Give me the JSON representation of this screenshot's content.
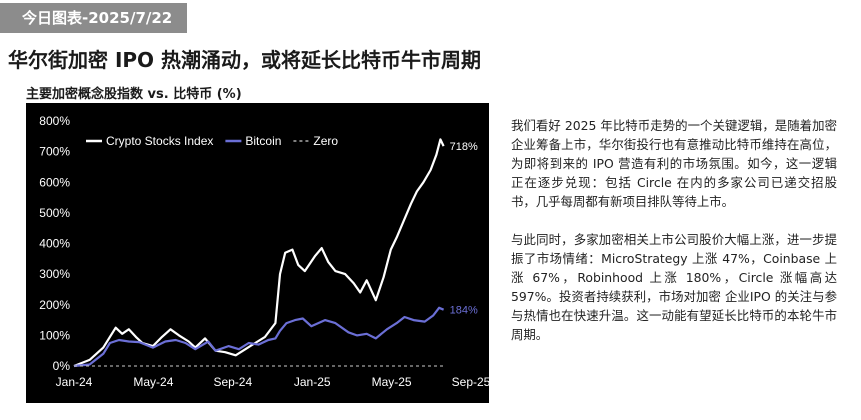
{
  "tag": "今日图表-2025/7/22",
  "headline": "华尔街加密 IPO 热潮涌动，或将延长比特币牛市周期",
  "chart_title": "主要加密概念股指数 vs. 比特币 (%)",
  "paragraphs": [
    "我们看好 2025 年比特币走势的一个关键逻辑，是随着加密企业筹备上市，华尔街投行也有意推动比特币维持在高位，为即将到来的 IPO 营造有利的市场氛围。如今，这一逻辑正在逐步兑现：包括 Circle 在内的多家公司已递交招股书，几乎每周都有新项目排队等待上市。",
    "与此同时，多家加密相关上市公司股价大幅上涨，进一步提振了市场情绪：MicroStrategy 上涨 47%，Coinbase 上涨 67%，Robinhood 上涨 180%，Circle 涨幅高达 597%。投资者持续获利，市场对加密 企业IPO 的关注与参与热情也在快速升温。这一动能有望延长比特币的本轮牛市周期。"
  ],
  "chart_data": {
    "type": "line",
    "title": "主要加密概念股指数 vs. 比特币 (%)",
    "x_ticks": [
      "Jan-24",
      "May-24",
      "Sep-24",
      "Jan-25",
      "May-25",
      "Sep-25"
    ],
    "x_range": [
      "2024-01-01",
      "2025-09-01"
    ],
    "y_ticks": [
      "0%",
      "100%",
      "200%",
      "300%",
      "400%",
      "500%",
      "600%",
      "700%",
      "800%"
    ],
    "ylim": [
      0,
      800
    ],
    "legend_position": "top-left",
    "series": [
      {
        "name": "Crypto Stocks Index",
        "color": "#ffffff",
        "end_label": "718%",
        "points": [
          [
            "2024-01-01",
            0
          ],
          [
            "2024-01-25",
            20
          ],
          [
            "2024-02-15",
            60
          ],
          [
            "2024-02-25",
            95
          ],
          [
            "2024-03-05",
            125
          ],
          [
            "2024-03-15",
            105
          ],
          [
            "2024-03-25",
            120
          ],
          [
            "2024-04-05",
            95
          ],
          [
            "2024-04-15",
            75
          ],
          [
            "2024-05-01",
            65
          ],
          [
            "2024-05-15",
            95
          ],
          [
            "2024-05-28",
            120
          ],
          [
            "2024-06-10",
            100
          ],
          [
            "2024-06-25",
            80
          ],
          [
            "2024-07-05",
            60
          ],
          [
            "2024-07-20",
            90
          ],
          [
            "2024-08-05",
            50
          ],
          [
            "2024-08-20",
            45
          ],
          [
            "2024-09-05",
            35
          ],
          [
            "2024-09-20",
            55
          ],
          [
            "2024-10-05",
            75
          ],
          [
            "2024-10-20",
            95
          ],
          [
            "2024-11-05",
            140
          ],
          [
            "2024-11-12",
            300
          ],
          [
            "2024-11-20",
            370
          ],
          [
            "2024-12-01",
            380
          ],
          [
            "2024-12-10",
            330
          ],
          [
            "2024-12-20",
            310
          ],
          [
            "2025-01-05",
            360
          ],
          [
            "2025-01-15",
            385
          ],
          [
            "2025-01-25",
            340
          ],
          [
            "2025-02-05",
            310
          ],
          [
            "2025-02-20",
            300
          ],
          [
            "2025-03-05",
            270
          ],
          [
            "2025-03-15",
            240
          ],
          [
            "2025-03-25",
            280
          ],
          [
            "2025-04-08",
            215
          ],
          [
            "2025-04-20",
            290
          ],
          [
            "2025-05-01",
            380
          ],
          [
            "2025-05-10",
            420
          ],
          [
            "2025-05-20",
            470
          ],
          [
            "2025-06-01",
            530
          ],
          [
            "2025-06-10",
            570
          ],
          [
            "2025-06-20",
            600
          ],
          [
            "2025-07-01",
            640
          ],
          [
            "2025-07-10",
            690
          ],
          [
            "2025-07-16",
            740
          ],
          [
            "2025-07-21",
            718
          ]
        ]
      },
      {
        "name": "Bitcoin",
        "color": "#6b6fd6",
        "end_label": "184%",
        "points": [
          [
            "2024-01-01",
            0
          ],
          [
            "2024-01-25",
            5
          ],
          [
            "2024-02-15",
            40
          ],
          [
            "2024-02-25",
            75
          ],
          [
            "2024-03-10",
            85
          ],
          [
            "2024-03-25",
            80
          ],
          [
            "2024-04-10",
            78
          ],
          [
            "2024-05-01",
            60
          ],
          [
            "2024-05-20",
            80
          ],
          [
            "2024-06-05",
            85
          ],
          [
            "2024-06-20",
            75
          ],
          [
            "2024-07-05",
            55
          ],
          [
            "2024-07-25",
            80
          ],
          [
            "2024-08-05",
            50
          ],
          [
            "2024-08-25",
            65
          ],
          [
            "2024-09-10",
            55
          ],
          [
            "2024-09-25",
            75
          ],
          [
            "2024-10-10",
            70
          ],
          [
            "2024-10-25",
            85
          ],
          [
            "2024-11-05",
            90
          ],
          [
            "2024-11-12",
            115
          ],
          [
            "2024-11-22",
            140
          ],
          [
            "2024-12-05",
            150
          ],
          [
            "2024-12-17",
            155
          ],
          [
            "2024-12-30",
            130
          ],
          [
            "2025-01-20",
            150
          ],
          [
            "2025-02-05",
            140
          ],
          [
            "2025-02-25",
            110
          ],
          [
            "2025-03-10",
            100
          ],
          [
            "2025-03-25",
            105
          ],
          [
            "2025-04-08",
            90
          ],
          [
            "2025-04-25",
            120
          ],
          [
            "2025-05-10",
            140
          ],
          [
            "2025-05-22",
            160
          ],
          [
            "2025-06-05",
            150
          ],
          [
            "2025-06-22",
            145
          ],
          [
            "2025-07-05",
            165
          ],
          [
            "2025-07-14",
            190
          ],
          [
            "2025-07-21",
            184
          ]
        ]
      },
      {
        "name": "Zero",
        "color": "#cccccc",
        "dashed": true,
        "points": [
          [
            "2024-01-01",
            0
          ],
          [
            "2025-07-21",
            0
          ]
        ]
      }
    ]
  }
}
